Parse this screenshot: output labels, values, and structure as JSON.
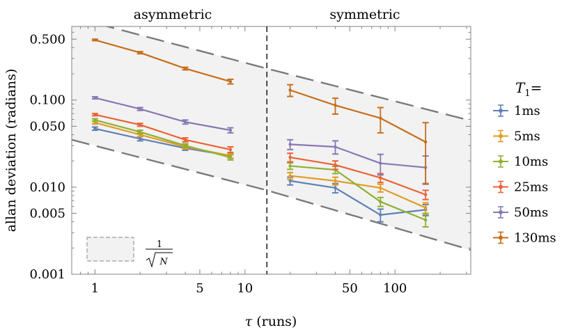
{
  "chart_data": {
    "type": "line",
    "xlabel": "τ (runs)",
    "ylabel": "allan deviation (radians)",
    "x_scale": "log",
    "y_scale": "log",
    "xlim": [
      0.7,
      320
    ],
    "ylim": [
      0.001,
      0.7
    ],
    "xticks": [
      {
        "v": 1,
        "l": "1"
      },
      {
        "v": 5,
        "l": "5"
      },
      {
        "v": 10,
        "l": "10"
      },
      {
        "v": 50,
        "l": "50"
      },
      {
        "v": 100,
        "l": "100"
      }
    ],
    "yticks": [
      {
        "v": 0.001,
        "l": "0.001"
      },
      {
        "v": 0.005,
        "l": "0.005"
      },
      {
        "v": 0.01,
        "l": "0.010"
      },
      {
        "v": 0.05,
        "l": "0.050"
      },
      {
        "v": 0.1,
        "l": "0.100"
      },
      {
        "v": 0.5,
        "l": "0.500"
      }
    ],
    "panels": [
      {
        "label": "asymmetric",
        "x_center": 3.3
      },
      {
        "label": "symmetric",
        "x_center": 63
      }
    ],
    "divider_x": 14,
    "legend": {
      "title": "T",
      "title_sub": "1",
      "title_suffix": "=",
      "placement": "right"
    },
    "band": {
      "label_num": "1",
      "label_den": "N",
      "upper": [
        [
          0.7,
          0.9
        ],
        [
          14,
          0.23
        ],
        [
          320,
          0.058
        ]
      ],
      "lower": [
        [
          0.7,
          0.035
        ],
        [
          14,
          0.0092
        ],
        [
          320,
          0.0019
        ]
      ]
    },
    "series": [
      {
        "name": "1ms",
        "color": "#5e81b5",
        "segments": [
          {
            "x": [
              1,
              2,
              4,
              8
            ],
            "y": [
              0.047,
              0.036,
              0.028,
              0.023
            ],
            "err": [
              0.002,
              0.002,
              0.0015,
              0.0015
            ]
          },
          {
            "x": [
              20,
              40,
              80,
              160
            ],
            "y": [
              0.0118,
              0.0098,
              0.0048,
              0.0055
            ],
            "err": [
              0.0012,
              0.0012,
              0.0008,
              0.0008
            ]
          }
        ]
      },
      {
        "name": "5ms",
        "color": "#e19c24",
        "segments": [
          {
            "x": [
              1,
              2,
              4,
              8
            ],
            "y": [
              0.055,
              0.04,
              0.029,
              0.023
            ],
            "err": [
              0.002,
              0.002,
              0.0015,
              0.0015
            ]
          },
          {
            "x": [
              20,
              40,
              80,
              160
            ],
            "y": [
              0.0135,
              0.0118,
              0.0098,
              0.0058
            ],
            "err": [
              0.0012,
              0.0012,
              0.001,
              0.0008
            ]
          }
        ]
      },
      {
        "name": "10ms",
        "color": "#8fb032",
        "segments": [
          {
            "x": [
              1,
              2,
              4,
              8
            ],
            "y": [
              0.059,
              0.043,
              0.03,
              0.022
            ],
            "err": [
              0.002,
              0.002,
              0.0015,
              0.0015
            ]
          },
          {
            "x": [
              20,
              40,
              80,
              160
            ],
            "y": [
              0.0175,
              0.0158,
              0.0068,
              0.0042
            ],
            "err": [
              0.0015,
              0.0015,
              0.0008,
              0.0007
            ]
          }
        ]
      },
      {
        "name": "25ms",
        "color": "#eb6235",
        "segments": [
          {
            "x": [
              1,
              2,
              4,
              8
            ],
            "y": [
              0.068,
              0.052,
              0.035,
              0.027
            ],
            "err": [
              0.002,
              0.002,
              0.0018,
              0.002
            ]
          },
          {
            "x": [
              20,
              40,
              80,
              160
            ],
            "y": [
              0.022,
              0.018,
              0.0128,
              0.0082
            ],
            "err": [
              0.0025,
              0.002,
              0.0015,
              0.001
            ]
          }
        ]
      },
      {
        "name": "50ms",
        "color": "#8778b3",
        "segments": [
          {
            "x": [
              1,
              2,
              4,
              8
            ],
            "y": [
              0.106,
              0.079,
              0.056,
              0.045
            ],
            "err": [
              0.003,
              0.003,
              0.003,
              0.003
            ]
          },
          {
            "x": [
              20,
              40,
              80,
              160
            ],
            "y": [
              0.031,
              0.029,
              0.0188,
              0.0168
            ],
            "err": [
              0.004,
              0.005,
              0.005,
              0.006
            ]
          }
        ]
      },
      {
        "name": "130ms",
        "color": "#c56e1a",
        "segments": [
          {
            "x": [
              1,
              2,
              4,
              8
            ],
            "y": [
              0.49,
              0.35,
              0.23,
              0.163
            ],
            "err": [
              0.01,
              0.01,
              0.008,
              0.01
            ]
          },
          {
            "x": [
              20,
              40,
              80,
              160
            ],
            "y": [
              0.13,
              0.087,
              0.062,
              0.033
            ],
            "err": [
              0.02,
              0.018,
              0.02,
              0.022
            ]
          }
        ]
      }
    ]
  }
}
